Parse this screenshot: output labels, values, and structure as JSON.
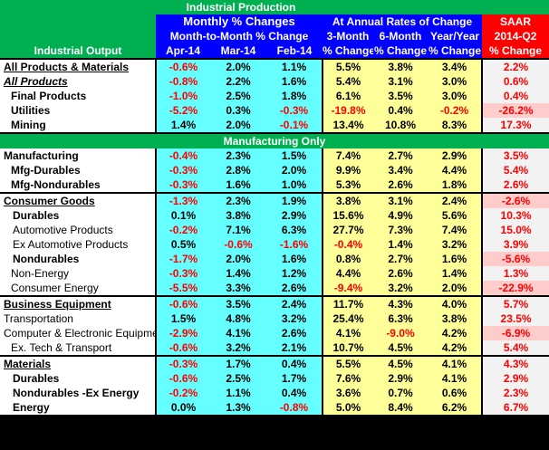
{
  "title": "Industrial Production",
  "header": {
    "monthly_group": "Monthly % Changes",
    "monthly_sub": "Month-to-Month % Change",
    "annual_group": "At Annual Rates of Change",
    "saar_label": "SAAR",
    "saar_period": "2014-Q2",
    "row_label": "Industrial Output",
    "cols": [
      "Apr-14",
      "Mar-14",
      "Feb-14",
      "3-Month",
      "6-Month",
      "Year/Year",
      "% Change"
    ],
    "annual_sub": [
      "% Change",
      "% Change",
      "% Change"
    ]
  },
  "section_manufacturing_only": "Manufacturing Only",
  "colors": {
    "title_bg": "#00b050",
    "header_blue": "#0000ff",
    "saar_red": "#ff0000",
    "monthly_cyan": "#66ffff",
    "annual_yellow": "#ffff99",
    "negative_text": "#ff0000"
  },
  "chart_data": {
    "type": "table",
    "title": "Industrial Production",
    "columns": [
      "Industrial Output",
      "Apr-14",
      "Mar-14",
      "Feb-14",
      "3-Month % Change",
      "6-Month % Change",
      "Year/Year % Change",
      "SAAR 2014-Q2 % Change"
    ],
    "rows": [
      {
        "label": "All Products & Materials",
        "values": [
          "-0.6%",
          "2.0%",
          "1.1%",
          "5.5%",
          "3.8%",
          "3.4%",
          "2.2%"
        ]
      },
      {
        "label": "All Products",
        "values": [
          "-0.8%",
          "2.2%",
          "1.6%",
          "5.4%",
          "3.1%",
          "3.0%",
          "0.6%"
        ]
      },
      {
        "label": "Final Products",
        "values": [
          "-1.0%",
          "2.5%",
          "1.8%",
          "6.1%",
          "3.5%",
          "3.0%",
          "0.4%"
        ]
      },
      {
        "label": "Utilities",
        "values": [
          "-5.2%",
          "0.3%",
          "-0.3%",
          "-19.8%",
          "0.4%",
          "-0.2%",
          "-26.2%"
        ]
      },
      {
        "label": "Mining",
        "values": [
          "1.4%",
          "2.0%",
          "-0.1%",
          "13.4%",
          "10.8%",
          "8.3%",
          "17.3%"
        ]
      },
      {
        "label": "Manufacturing",
        "values": [
          "-0.4%",
          "2.3%",
          "1.5%",
          "7.4%",
          "2.7%",
          "2.9%",
          "3.5%"
        ]
      },
      {
        "label": "Mfg-Durables",
        "values": [
          "-0.3%",
          "2.8%",
          "2.0%",
          "9.9%",
          "3.4%",
          "4.4%",
          "5.4%"
        ]
      },
      {
        "label": "Mfg-Nondurables",
        "values": [
          "-0.3%",
          "1.6%",
          "1.0%",
          "5.3%",
          "2.6%",
          "1.8%",
          "2.6%"
        ]
      },
      {
        "label": "Consumer Goods",
        "values": [
          "-1.3%",
          "2.3%",
          "1.9%",
          "3.8%",
          "3.1%",
          "2.4%",
          "-2.6%"
        ]
      },
      {
        "label": "Durables",
        "values": [
          "0.1%",
          "3.8%",
          "2.9%",
          "15.6%",
          "4.9%",
          "5.6%",
          "10.3%"
        ]
      },
      {
        "label": "Automotive Products",
        "values": [
          "-0.2%",
          "7.1%",
          "6.3%",
          "27.7%",
          "7.3%",
          "7.4%",
          "15.0%"
        ]
      },
      {
        "label": "Ex Automotive Products",
        "values": [
          "0.5%",
          "-0.6%",
          "-1.6%",
          "-0.4%",
          "1.4%",
          "3.2%",
          "3.9%"
        ]
      },
      {
        "label": "Nondurables",
        "values": [
          "-1.7%",
          "2.0%",
          "1.6%",
          "0.8%",
          "2.7%",
          "1.6%",
          "-5.6%"
        ]
      },
      {
        "label": "Non-Energy",
        "values": [
          "-0.3%",
          "1.4%",
          "1.2%",
          "4.4%",
          "2.6%",
          "1.4%",
          "1.3%"
        ]
      },
      {
        "label": "Consumer Energy",
        "values": [
          "-5.5%",
          "3.3%",
          "2.6%",
          "-9.4%",
          "3.2%",
          "2.0%",
          "-22.9%"
        ]
      },
      {
        "label": "Business Equipment",
        "values": [
          "-0.6%",
          "3.5%",
          "2.4%",
          "11.7%",
          "4.3%",
          "4.0%",
          "5.7%"
        ]
      },
      {
        "label": "Transportation",
        "values": [
          "1.5%",
          "4.8%",
          "3.2%",
          "25.4%",
          "6.3%",
          "3.8%",
          "23.5%"
        ]
      },
      {
        "label": "Computer & Electronic Equipment",
        "values": [
          "-2.9%",
          "4.1%",
          "2.6%",
          "4.1%",
          "-9.0%",
          "4.2%",
          "-6.9%"
        ]
      },
      {
        "label": "Ex. Tech & Transport",
        "values": [
          "-0.6%",
          "3.2%",
          "2.1%",
          "10.7%",
          "4.5%",
          "4.2%",
          "5.4%"
        ]
      },
      {
        "label": "Materials",
        "values": [
          "-0.3%",
          "1.7%",
          "0.4%",
          "5.5%",
          "4.5%",
          "4.1%",
          "4.3%"
        ]
      },
      {
        "label": "Durables",
        "values": [
          "-0.6%",
          "2.5%",
          "1.7%",
          "7.6%",
          "2.9%",
          "4.1%",
          "2.9%"
        ]
      },
      {
        "label": "Nondurables -Ex Energy",
        "values": [
          "-0.2%",
          "1.1%",
          "0.4%",
          "3.6%",
          "0.7%",
          "0.6%",
          "2.3%"
        ]
      },
      {
        "label": "Energy",
        "values": [
          "0.0%",
          "1.3%",
          "-0.8%",
          "5.0%",
          "8.4%",
          "6.2%",
          "6.7%"
        ]
      }
    ]
  }
}
